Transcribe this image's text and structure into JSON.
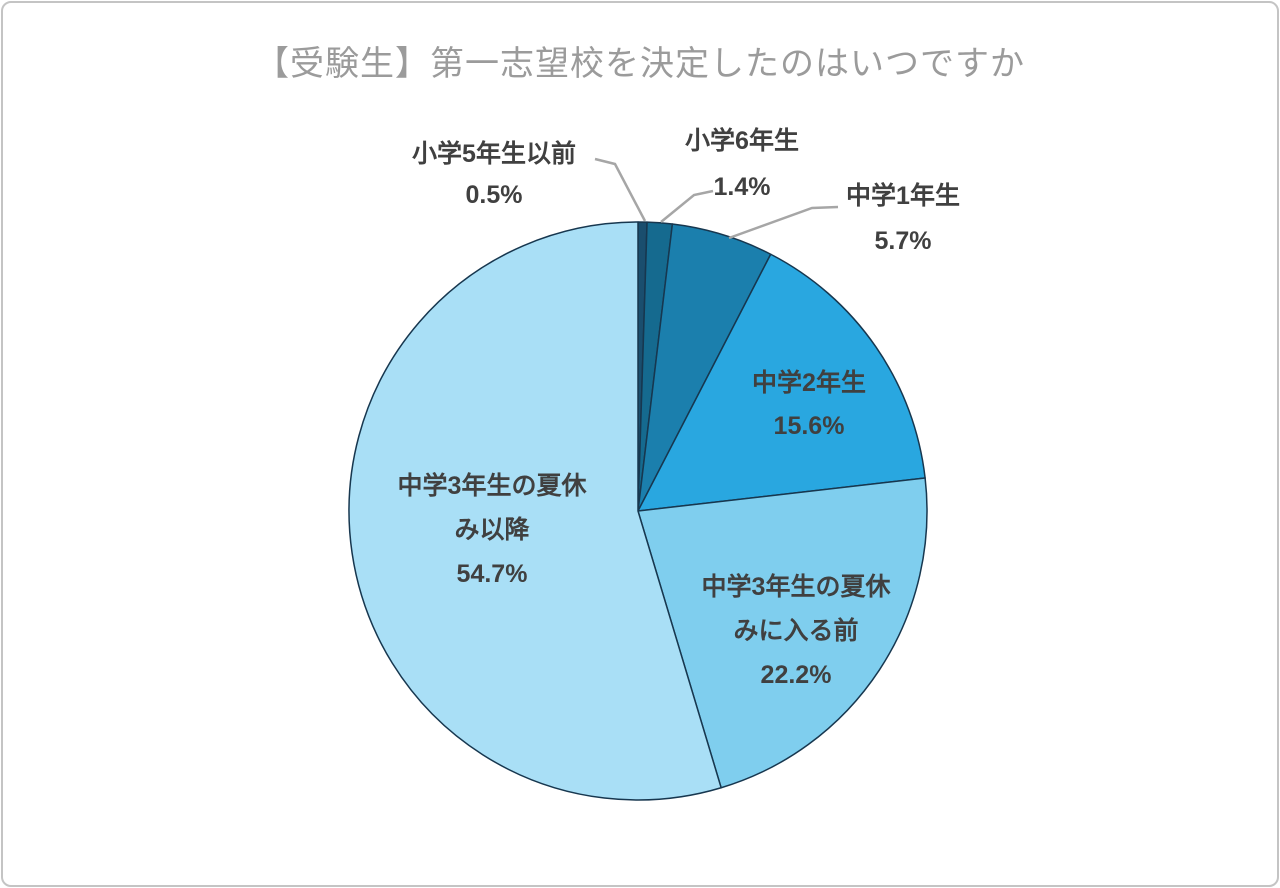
{
  "colors": {
    "background": "#FFFFFF",
    "card_border": "#C4C4C4",
    "title_text": "#9B9B9B",
    "label_text": "#404040",
    "slice_outline": "#17374F",
    "leader_line": "#A6A6A6"
  },
  "chart_data": {
    "type": "pie",
    "title": "【受験生】第一志望校を決定したのはいつですか",
    "start_angle_deg_from_top": 0,
    "direction": "clockwise",
    "legend": "none",
    "slices": [
      {
        "name": "小学5年生以前",
        "value": 0.5,
        "pct_label": "0.5%",
        "color": "#1A4E6E",
        "label_position": "outside",
        "label_lines": [
          "小学5年生以前",
          "0.5%"
        ]
      },
      {
        "name": "小学6年生",
        "value": 1.4,
        "pct_label": "1.4%",
        "color": "#156A8F",
        "label_position": "outside",
        "label_lines": [
          "小学6年生",
          "1.4%"
        ]
      },
      {
        "name": "中学1年生",
        "value": 5.7,
        "pct_label": "5.7%",
        "color": "#1B7FAD",
        "label_position": "outside",
        "label_lines": [
          "中学1年生",
          "5.7%"
        ]
      },
      {
        "name": "中学2年生",
        "value": 15.6,
        "pct_label": "15.6%",
        "color": "#29A7E0",
        "label_position": "inside",
        "label_lines": [
          "中学2年生",
          "15.6%"
        ]
      },
      {
        "name": "中学3年生の夏休みに入る前",
        "value": 22.2,
        "pct_label": "22.2%",
        "color": "#7FCEEE",
        "label_position": "inside",
        "label_lines": [
          "中学3年生の夏休",
          "みに入る前",
          "22.2%"
        ]
      },
      {
        "name": "中学3年生の夏休み以降",
        "value": 54.7,
        "pct_label": "54.7%",
        "color": "#A9DFF6",
        "label_position": "inside",
        "label_lines": [
          "中学3年生の夏休",
          "み以降",
          "54.7%"
        ]
      }
    ]
  }
}
